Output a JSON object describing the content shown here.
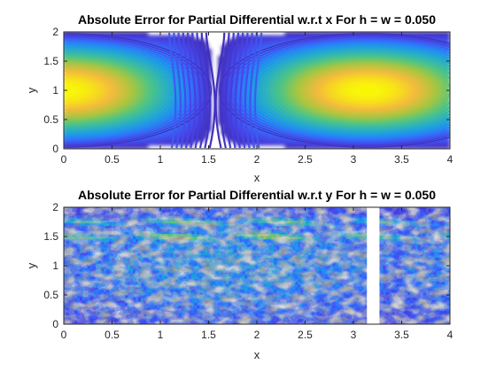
{
  "colors": {
    "colormap": [
      "#3e26a8",
      "#4745e9",
      "#2f76fd",
      "#1d9ce5",
      "#2db3bb",
      "#4ec583",
      "#a5c640",
      "#f4ba3c",
      "#f9f905"
    ],
    "axis": "#262626"
  },
  "chart_data": [
    {
      "type": "contour",
      "title": "Absolute Error for Partial Differential w.r.t x For h = w = 0.050",
      "xlabel": "x",
      "ylabel": "y",
      "xlim": [
        0,
        4
      ],
      "ylim": [
        0,
        2
      ],
      "xticks": [
        "0",
        "0.5",
        "1",
        "1.5",
        "2",
        "2.5",
        "3",
        "3.5",
        "4"
      ],
      "yticks": [
        "0",
        "0.5",
        "1",
        "1.5",
        "2"
      ],
      "x_tick_values": [
        0,
        0.5,
        1,
        1.5,
        2,
        2.5,
        3,
        3.5,
        4
      ],
      "y_tick_values": [
        0,
        0.5,
        1,
        1.5,
        2
      ],
      "grid": false,
      "peaks": [
        {
          "x": 0,
          "y": 1
        },
        {
          "x": 3.14,
          "y": 1
        }
      ],
      "zero_line_x": 1.57
    },
    {
      "type": "contour",
      "title": "Absolute Error for Partial Differential w.r.t y For h = w = 0.050",
      "xlabel": "x",
      "ylabel": "y",
      "xlim": [
        0,
        4
      ],
      "ylim": [
        0,
        2
      ],
      "xticks": [
        "0",
        "0.5",
        "1",
        "1.5",
        "2",
        "2.5",
        "3",
        "3.5",
        "4"
      ],
      "yticks": [
        "0",
        "0.5",
        "1",
        "1.5",
        "2"
      ],
      "x_tick_values": [
        0,
        0.5,
        1,
        1.5,
        2,
        2.5,
        3,
        3.5,
        4
      ],
      "y_tick_values": [
        0,
        0.5,
        1,
        1.5,
        2
      ],
      "grid": false,
      "high_error_bands_y": [
        1.5,
        1.75
      ],
      "blank_region_x": [
        3.14,
        3.27
      ]
    }
  ]
}
